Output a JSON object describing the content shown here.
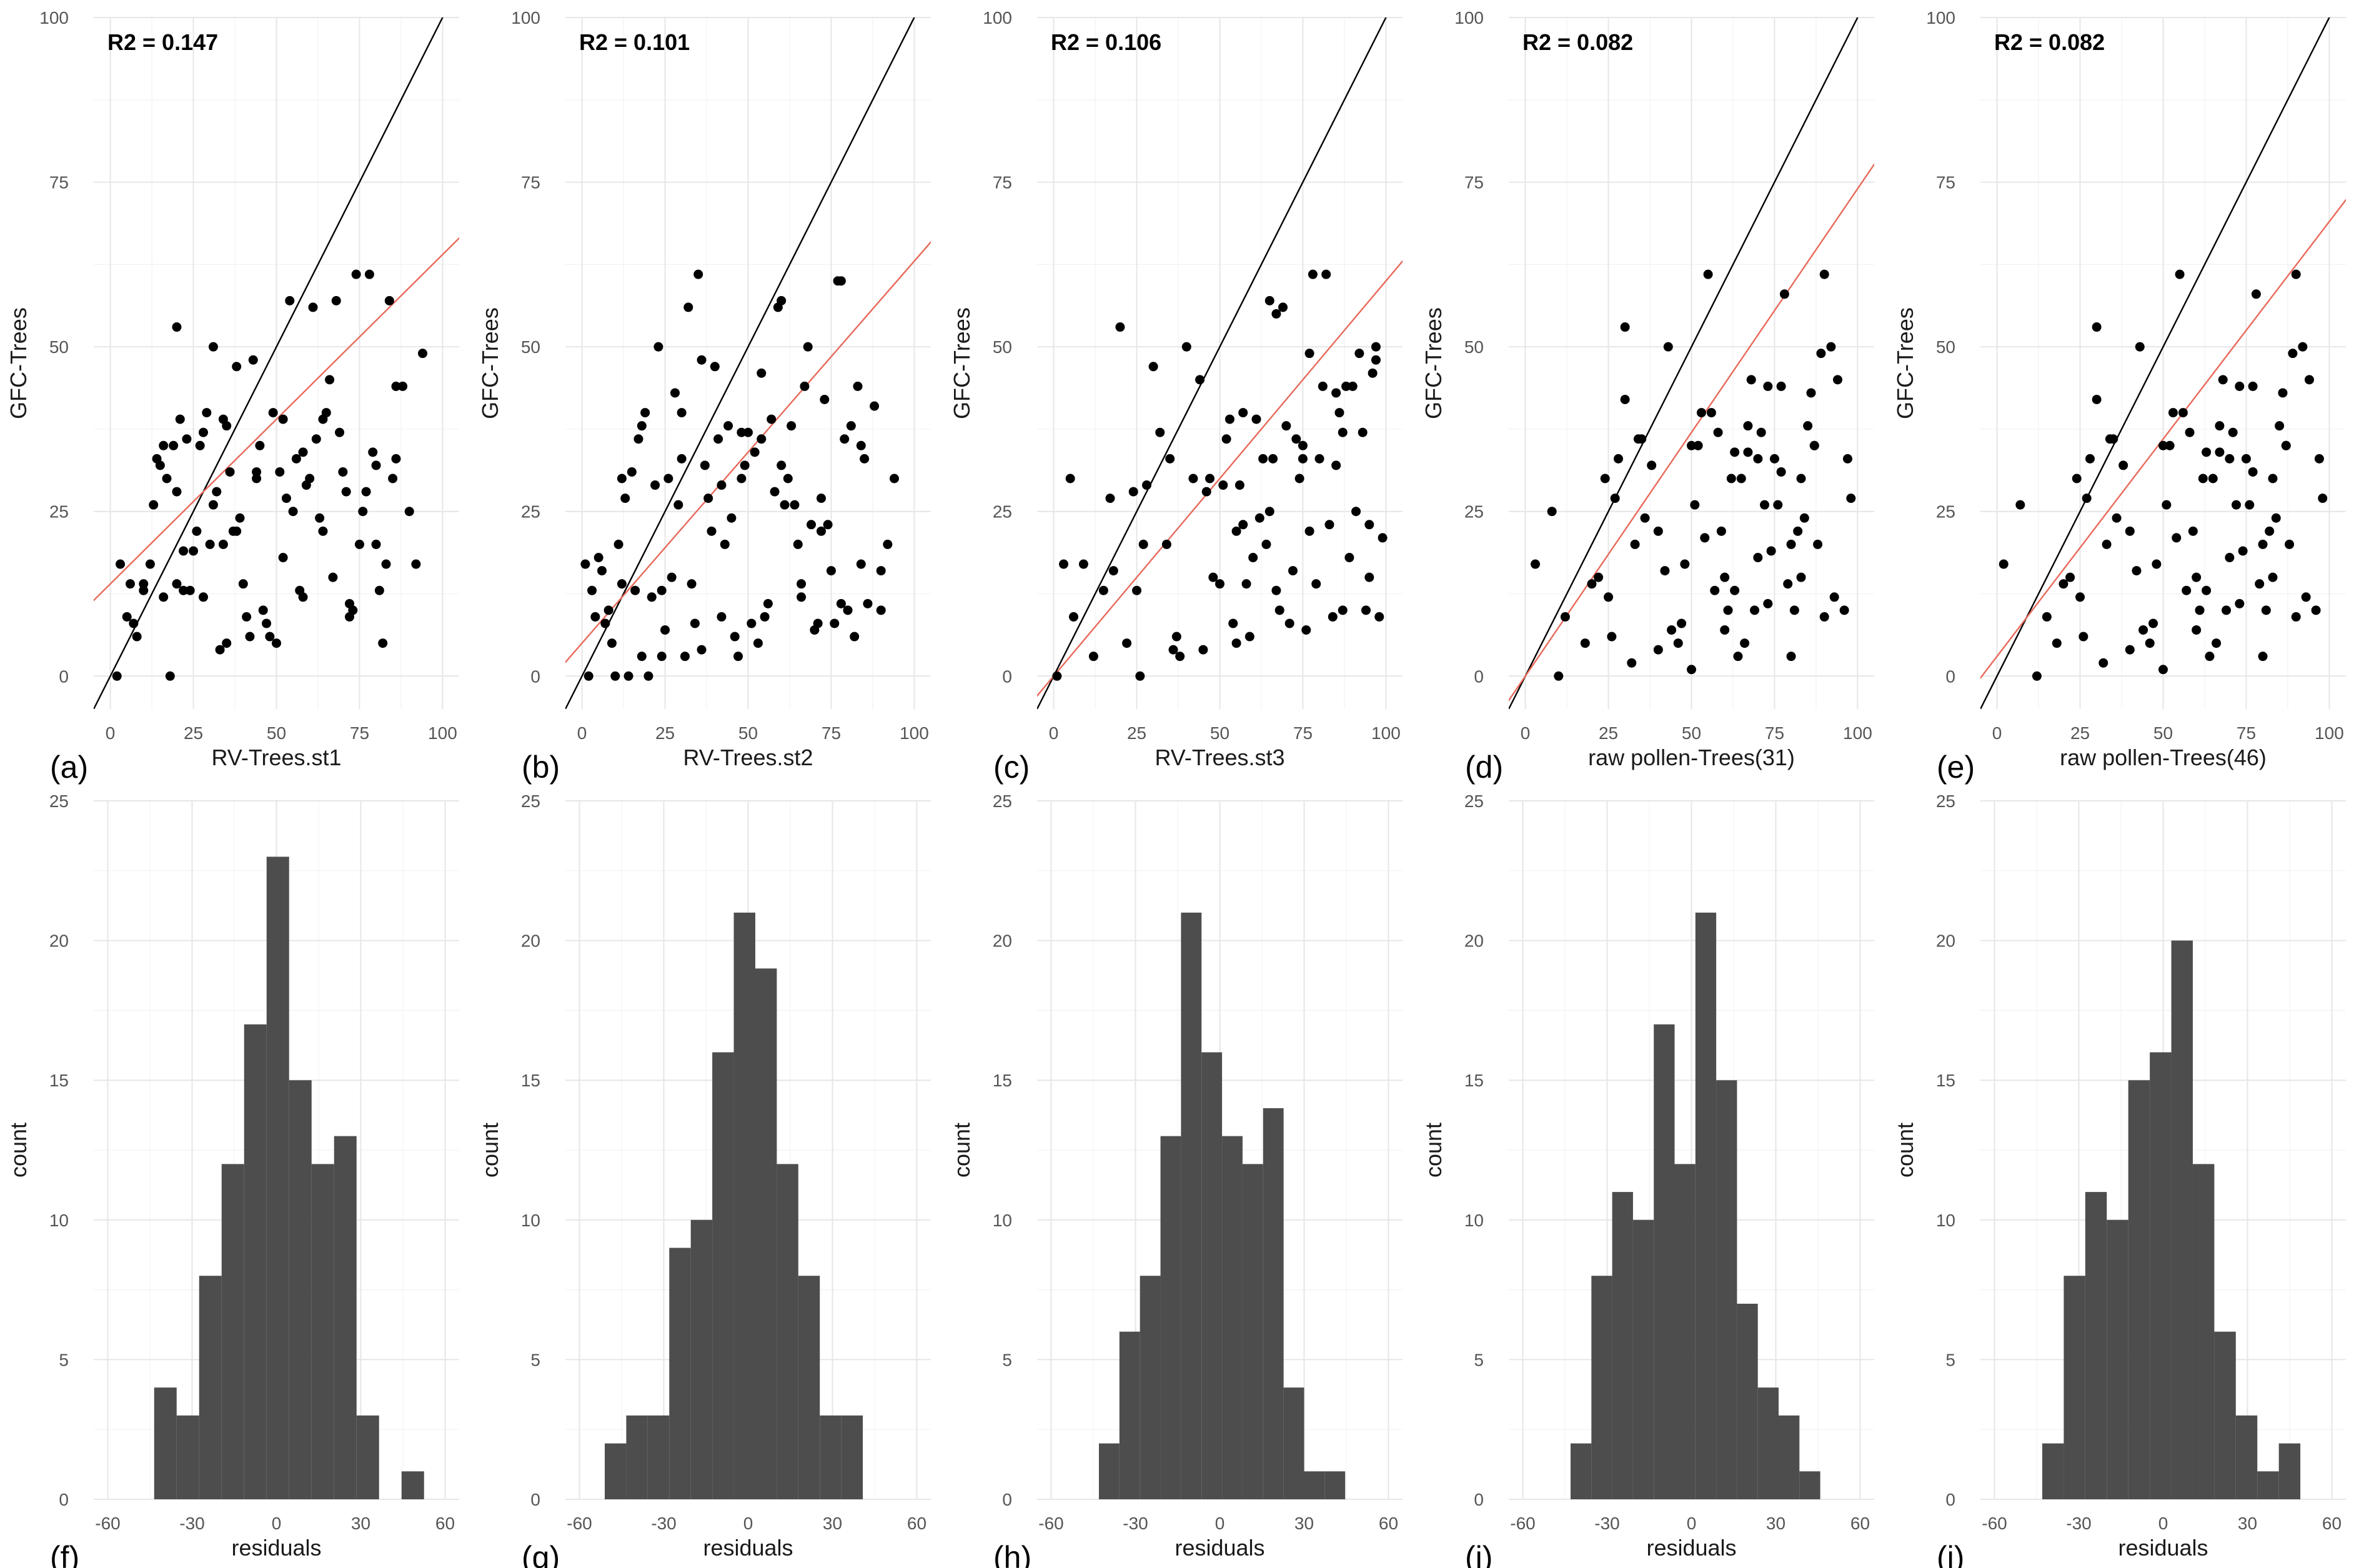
{
  "figure": {
    "scatter_ylabel": "GFC-Trees",
    "hist_xlabel": "residuals",
    "hist_ylabel": "count",
    "r2_prefix": "R2 = "
  },
  "colors": {
    "points": "#000000",
    "identity_line": "#000000",
    "fit_line": "#e8695a",
    "bars": "#4d4d4d",
    "grid": "#e6e6e6"
  },
  "chart_data": [
    {
      "type": "scatter",
      "panel_label": "(a)",
      "r2": "0.147",
      "xlabel": "RV-Trees.st1",
      "ylabel": "GFC-Trees",
      "xlim": [
        -5,
        105
      ],
      "ylim": [
        -5,
        100
      ],
      "xticks": [
        0,
        25,
        50,
        75,
        100
      ],
      "yticks": [
        0,
        25,
        50,
        75,
        100
      ],
      "identity_line": true,
      "fit_line": {
        "slope": 0.5,
        "intercept": 14
      },
      "x": [
        2,
        3,
        5,
        7,
        8,
        10,
        12,
        13,
        15,
        16,
        17,
        18,
        19,
        20,
        20,
        21,
        22,
        23,
        24,
        25,
        26,
        27,
        28,
        29,
        30,
        31,
        31,
        32,
        33,
        34,
        35,
        35,
        36,
        37,
        38,
        39,
        40,
        41,
        42,
        43,
        44,
        45,
        46,
        47,
        48,
        49,
        50,
        51,
        52,
        53,
        54,
        55,
        56,
        57,
        58,
        59,
        60,
        61,
        62,
        63,
        64,
        65,
        66,
        67,
        68,
        69,
        70,
        71,
        72,
        73,
        74,
        75,
        76,
        77,
        78,
        79,
        80,
        81,
        82,
        83,
        84,
        85,
        86,
        88,
        90,
        92,
        16,
        20,
        22,
        28,
        34,
        38,
        44,
        52,
        58,
        64,
        72,
        80,
        86,
        94,
        6,
        10,
        14
      ],
      "y": [
        0,
        17,
        9,
        8,
        6,
        14,
        17,
        26,
        32,
        12,
        30,
        0,
        35,
        28,
        53,
        39,
        13,
        36,
        13,
        19,
        22,
        35,
        37,
        40,
        20,
        26,
        50,
        28,
        4,
        39,
        5,
        38,
        31,
        22,
        47,
        24,
        14,
        9,
        6,
        48,
        31,
        35,
        10,
        8,
        6,
        40,
        5,
        31,
        18,
        27,
        57,
        25,
        33,
        13,
        12,
        29,
        30,
        56,
        36,
        24,
        22,
        40,
        45,
        15,
        57,
        37,
        31,
        28,
        9,
        10,
        61,
        20,
        25,
        28,
        61,
        34,
        20,
        13,
        5,
        17,
        57,
        30,
        33,
        44,
        25,
        17,
        35,
        14,
        19,
        12,
        20,
        22,
        30,
        39,
        34,
        39,
        11,
        32,
        44,
        49,
        14,
        13,
        33
      ],
      "grid": true
    },
    {
      "type": "scatter",
      "panel_label": "(b)",
      "r2": "0.101",
      "xlabel": "RV-Trees.st2",
      "ylabel": "GFC-Trees",
      "xlim": [
        -5,
        105
      ],
      "ylim": [
        -5,
        100
      ],
      "xticks": [
        0,
        25,
        50,
        75,
        100
      ],
      "yticks": [
        0,
        25,
        50,
        75,
        100
      ],
      "identity_line": true,
      "fit_line": {
        "slope": 0.58,
        "intercept": 5
      },
      "x": [
        1,
        2,
        3,
        4,
        5,
        6,
        7,
        8,
        9,
        10,
        11,
        12,
        13,
        14,
        15,
        16,
        17,
        18,
        19,
        20,
        21,
        22,
        23,
        24,
        25,
        26,
        27,
        28,
        29,
        30,
        31,
        32,
        33,
        34,
        35,
        36,
        37,
        38,
        39,
        40,
        41,
        42,
        43,
        44,
        45,
        46,
        47,
        48,
        49,
        50,
        51,
        52,
        53,
        54,
        55,
        56,
        57,
        58,
        59,
        60,
        61,
        62,
        63,
        64,
        65,
        66,
        67,
        68,
        69,
        70,
        71,
        72,
        73,
        74,
        75,
        76,
        77,
        78,
        79,
        80,
        81,
        82,
        83,
        84,
        85,
        86,
        88,
        90,
        92,
        94,
        12,
        18,
        24,
        30,
        36,
        42,
        48,
        54,
        60,
        66,
        72,
        78,
        84,
        90
      ],
      "y": [
        17,
        0,
        13,
        9,
        18,
        16,
        8,
        10,
        5,
        0,
        20,
        14,
        27,
        0,
        31,
        13,
        36,
        38,
        40,
        0,
        12,
        29,
        50,
        3,
        7,
        30,
        15,
        43,
        26,
        33,
        3,
        56,
        14,
        8,
        61,
        4,
        32,
        27,
        22,
        47,
        36,
        9,
        20,
        38,
        24,
        6,
        3,
        30,
        32,
        37,
        8,
        34,
        5,
        46,
        9,
        11,
        39,
        28,
        56,
        32,
        26,
        30,
        38,
        26,
        20,
        12,
        44,
        50,
        23,
        7,
        8,
        27,
        42,
        23,
        16,
        8,
        60,
        11,
        36,
        10,
        38,
        6,
        44,
        35,
        33,
        11,
        41,
        16,
        20,
        30,
        30,
        3,
        13,
        40,
        48,
        29,
        37,
        36,
        57,
        14,
        22,
        60,
        17,
        10
      ],
      "grid": true
    },
    {
      "type": "scatter",
      "panel_label": "(c)",
      "r2": "0.106",
      "xlabel": "RV-Trees.st3",
      "ylabel": "GFC-Trees",
      "xlim": [
        -5,
        105
      ],
      "ylim": [
        -5,
        100
      ],
      "xticks": [
        0,
        25,
        50,
        75,
        100
      ],
      "yticks": [
        0,
        25,
        50,
        75,
        100
      ],
      "identity_line": true,
      "fit_line": {
        "slope": 0.6,
        "intercept": 0
      },
      "x": [
        1,
        3,
        6,
        9,
        12,
        15,
        18,
        20,
        22,
        24,
        26,
        28,
        30,
        32,
        34,
        36,
        38,
        40,
        42,
        44,
        46,
        48,
        50,
        51,
        52,
        53,
        54,
        55,
        56,
        57,
        58,
        59,
        60,
        61,
        62,
        63,
        64,
        65,
        66,
        67,
        68,
        69,
        70,
        71,
        72,
        73,
        74,
        75,
        76,
        77,
        78,
        79,
        80,
        81,
        82,
        83,
        84,
        85,
        86,
        87,
        88,
        89,
        90,
        91,
        92,
        93,
        94,
        95,
        96,
        97,
        98,
        99,
        5,
        17,
        27,
        37,
        47,
        57,
        67,
        77,
        87,
        97,
        45,
        55,
        65,
        75,
        85,
        95,
        25,
        35
      ],
      "y": [
        0,
        17,
        9,
        17,
        3,
        13,
        16,
        53,
        5,
        28,
        0,
        29,
        47,
        37,
        20,
        4,
        3,
        50,
        30,
        45,
        28,
        15,
        14,
        29,
        36,
        39,
        8,
        5,
        29,
        40,
        14,
        6,
        18,
        39,
        24,
        33,
        20,
        57,
        33,
        13,
        10,
        56,
        38,
        8,
        16,
        36,
        30,
        33,
        7,
        49,
        61,
        14,
        33,
        44,
        61,
        23,
        9,
        43,
        40,
        10,
        44,
        18,
        44,
        25,
        49,
        37,
        10,
        23,
        46,
        50,
        9,
        21,
        30,
        27,
        20,
        6,
        30,
        23,
        55,
        22,
        37,
        48,
        4,
        22,
        25,
        35,
        32,
        15,
        13,
        33
      ],
      "grid": true
    },
    {
      "type": "scatter",
      "panel_label": "(d)",
      "r2": "0.082",
      "xlabel": "raw pollen-Trees(31)",
      "ylabel": "GFC-Trees",
      "xlim": [
        -5,
        105
      ],
      "ylim": [
        -5,
        100
      ],
      "xticks": [
        0,
        25,
        50,
        75,
        100
      ],
      "yticks": [
        0,
        25,
        50,
        75,
        100
      ],
      "identity_line": true,
      "fit_line": {
        "slope": 0.74,
        "intercept": 0
      },
      "x": [
        3,
        8,
        10,
        12,
        18,
        20,
        22,
        24,
        26,
        28,
        30,
        32,
        34,
        36,
        38,
        40,
        42,
        44,
        46,
        48,
        50,
        51,
        52,
        53,
        54,
        55,
        56,
        57,
        58,
        59,
        60,
        61,
        62,
        63,
        64,
        65,
        66,
        67,
        68,
        69,
        70,
        71,
        72,
        73,
        74,
        75,
        76,
        77,
        78,
        79,
        80,
        81,
        82,
        83,
        84,
        85,
        86,
        87,
        88,
        89,
        90,
        92,
        94,
        96,
        98,
        27,
        33,
        43,
        47,
        63,
        67,
        73,
        77,
        83,
        87,
        93,
        97,
        30,
        40,
        50,
        60,
        70,
        80,
        90,
        25,
        35
      ],
      "y": [
        17,
        25,
        0,
        9,
        5,
        14,
        15,
        30,
        6,
        33,
        53,
        2,
        36,
        24,
        32,
        4,
        16,
        7,
        5,
        17,
        1,
        26,
        35,
        40,
        21,
        61,
        40,
        13,
        37,
        22,
        7,
        10,
        30,
        34,
        3,
        30,
        5,
        38,
        45,
        10,
        33,
        37,
        26,
        44,
        19,
        33,
        26,
        31,
        58,
        14,
        20,
        10,
        22,
        15,
        24,
        38,
        43,
        35,
        20,
        49,
        9,
        50,
        45,
        10,
        27,
        27,
        20,
        50,
        8,
        13,
        34,
        11,
        44,
        30,
        35,
        12,
        33,
        42,
        22,
        35,
        15,
        18,
        3,
        61,
        12,
        36
      ],
      "grid": true
    },
    {
      "type": "scatter",
      "panel_label": "(e)",
      "r2": "0.082",
      "xlabel": "raw pollen-Trees(46)",
      "ylabel": "GFC-Trees",
      "xlim": [
        -5,
        105
      ],
      "ylim": [
        -5,
        100
      ],
      "xticks": [
        0,
        25,
        50,
        75,
        100
      ],
      "yticks": [
        0,
        25,
        50,
        75,
        100
      ],
      "identity_line": true,
      "fit_line": {
        "slope": 0.66,
        "intercept": 3
      },
      "x": [
        2,
        7,
        12,
        15,
        18,
        20,
        22,
        24,
        26,
        28,
        30,
        32,
        34,
        36,
        38,
        40,
        42,
        44,
        46,
        48,
        50,
        51,
        52,
        53,
        54,
        55,
        56,
        57,
        58,
        59,
        60,
        61,
        62,
        63,
        64,
        65,
        66,
        67,
        68,
        69,
        70,
        71,
        72,
        73,
        74,
        75,
        76,
        77,
        78,
        79,
        80,
        81,
        82,
        83,
        84,
        85,
        86,
        87,
        88,
        89,
        90,
        92,
        94,
        96,
        98,
        27,
        33,
        43,
        47,
        63,
        67,
        73,
        77,
        83,
        87,
        93,
        97,
        30,
        40,
        50,
        60,
        70,
        80,
        90,
        25,
        35
      ],
      "y": [
        17,
        26,
        0,
        9,
        5,
        14,
        15,
        30,
        6,
        33,
        53,
        2,
        36,
        24,
        32,
        4,
        16,
        7,
        5,
        17,
        1,
        26,
        35,
        40,
        21,
        61,
        40,
        13,
        37,
        22,
        7,
        10,
        30,
        34,
        3,
        30,
        5,
        38,
        45,
        10,
        33,
        37,
        26,
        44,
        19,
        33,
        26,
        31,
        58,
        14,
        20,
        10,
        22,
        15,
        24,
        38,
        43,
        35,
        20,
        49,
        9,
        50,
        45,
        10,
        27,
        27,
        20,
        50,
        8,
        13,
        34,
        11,
        44,
        30,
        35,
        12,
        33,
        42,
        22,
        35,
        15,
        18,
        3,
        61,
        12,
        36
      ],
      "grid": true
    },
    {
      "type": "bar",
      "subtype": "histogram",
      "panel_label": "(f)",
      "xlabel": "residuals",
      "ylabel": "count",
      "xlim": [
        -65,
        65
      ],
      "ylim": [
        0,
        25
      ],
      "xticks": [
        -60,
        -30,
        0,
        30,
        60
      ],
      "yticks": [
        0,
        5,
        10,
        15,
        20,
        25
      ],
      "bin_start": -43.5,
      "bin_width": 8,
      "values": [
        4,
        3,
        8,
        12,
        17,
        23,
        15,
        12,
        13,
        3,
        0,
        1
      ],
      "grid": true
    },
    {
      "type": "bar",
      "subtype": "histogram",
      "panel_label": "(g)",
      "xlabel": "residuals",
      "ylabel": "count",
      "xlim": [
        -65,
        65
      ],
      "ylim": [
        0,
        25
      ],
      "xticks": [
        -60,
        -30,
        0,
        30,
        60
      ],
      "yticks": [
        0,
        5,
        10,
        15,
        20,
        25
      ],
      "bin_start": -51,
      "bin_width": 7.65,
      "values": [
        2,
        3,
        3,
        9,
        10,
        16,
        21,
        19,
        12,
        8,
        3,
        3
      ],
      "grid": true
    },
    {
      "type": "bar",
      "subtype": "histogram",
      "panel_label": "(h)",
      "xlabel": "residuals",
      "ylabel": "count",
      "xlim": [
        -65,
        65
      ],
      "ylim": [
        0,
        25
      ],
      "xticks": [
        -60,
        -30,
        0,
        30,
        60
      ],
      "yticks": [
        0,
        5,
        10,
        15,
        20,
        25
      ],
      "bin_start": -43,
      "bin_width": 7.3,
      "values": [
        2,
        6,
        8,
        13,
        21,
        16,
        13,
        12,
        14,
        4,
        1,
        1
      ],
      "grid": true
    },
    {
      "type": "bar",
      "subtype": "histogram",
      "panel_label": "(i)",
      "xlabel": "residuals",
      "ylabel": "count",
      "xlim": [
        -65,
        65
      ],
      "ylim": [
        0,
        25
      ],
      "xticks": [
        -60,
        -30,
        0,
        30,
        60
      ],
      "yticks": [
        0,
        5,
        10,
        15,
        20,
        25
      ],
      "bin_start": -43,
      "bin_width": 7.4,
      "values": [
        2,
        8,
        11,
        10,
        17,
        12,
        21,
        15,
        7,
        4,
        3,
        1
      ],
      "grid": true
    },
    {
      "type": "bar",
      "subtype": "histogram",
      "panel_label": "(j)",
      "xlabel": "residuals",
      "ylabel": "count",
      "xlim": [
        -65,
        65
      ],
      "ylim": [
        0,
        25
      ],
      "xticks": [
        -60,
        -30,
        0,
        30,
        60
      ],
      "yticks": [
        0,
        5,
        10,
        15,
        20,
        25
      ],
      "bin_start": -43,
      "bin_width": 7.65,
      "values": [
        2,
        8,
        11,
        10,
        15,
        16,
        20,
        12,
        6,
        3,
        1,
        2
      ],
      "grid": true
    }
  ]
}
